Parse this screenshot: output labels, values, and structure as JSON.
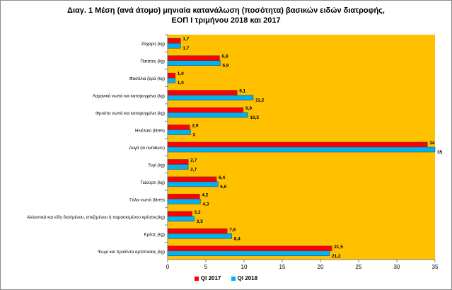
{
  "chart_data": {
    "type": "bar",
    "orientation": "horizontal",
    "title_line1": "Διαγ. 1  Μέση (ανά άτομο) μηνιαία κατανάλωση (ποσότητα) βασικών ειδών διατροφής,",
    "title_line2": "ΕΟΠ Ι τριμήνου 2018 και 2017",
    "categories": [
      "Ζάχαρη (kg)",
      "Πατάτες (kg)",
      "Φασόλια ξερά (kg)",
      "Λαχανικά νωπά και κατεψυγμένα (kg)",
      "Φρούτα νωπά και κατεψυγμένα (kg)",
      "Ηλιέλαιο (litres)",
      "Αυγά (in numbers)",
      "Τυρί (kg)",
      "Γιαούρτι (kg)",
      "Γάλα νωπό (litres)",
      "Αλλαντικά και είδη διατ/μένου, επεξ/μένου ή παρασκ/μένου κρέατος(kg)",
      "Κρέας (kg)",
      "Ψωμί και προϊόντα αρτοποιίας (kg)"
    ],
    "series": [
      {
        "name": "QI 2017",
        "color": "#ff0000",
        "values": [
          1.7,
          6.8,
          1.0,
          9.1,
          9.9,
          2.9,
          34,
          2.7,
          6.4,
          4.2,
          3.2,
          7.8,
          21.5
        ],
        "labels": [
          "1,7",
          "6,8",
          "1,0",
          "9,1",
          "9,9",
          "2,9",
          "34",
          "2,7",
          "6,4",
          "4,2",
          "3,2",
          "7,8",
          "21,5"
        ]
      },
      {
        "name": "QI 2018",
        "color": "#00b0f0",
        "values": [
          1.7,
          6.9,
          1.0,
          11.2,
          10.5,
          3,
          35,
          2.7,
          6.6,
          4.3,
          3.5,
          8.4,
          21.2
        ],
        "labels": [
          "1,7",
          "6,9",
          "1,0",
          "11,2",
          "10,5",
          "3",
          "35",
          "2,7",
          "6,6",
          "4,3",
          "3,5",
          "8,4",
          "21,2"
        ]
      }
    ],
    "xlim": [
      0,
      35
    ],
    "xticks": [
      0,
      5,
      10,
      15,
      20,
      25,
      30,
      35
    ],
    "plot_background": "#ffc000",
    "legend_position": "bottom"
  }
}
